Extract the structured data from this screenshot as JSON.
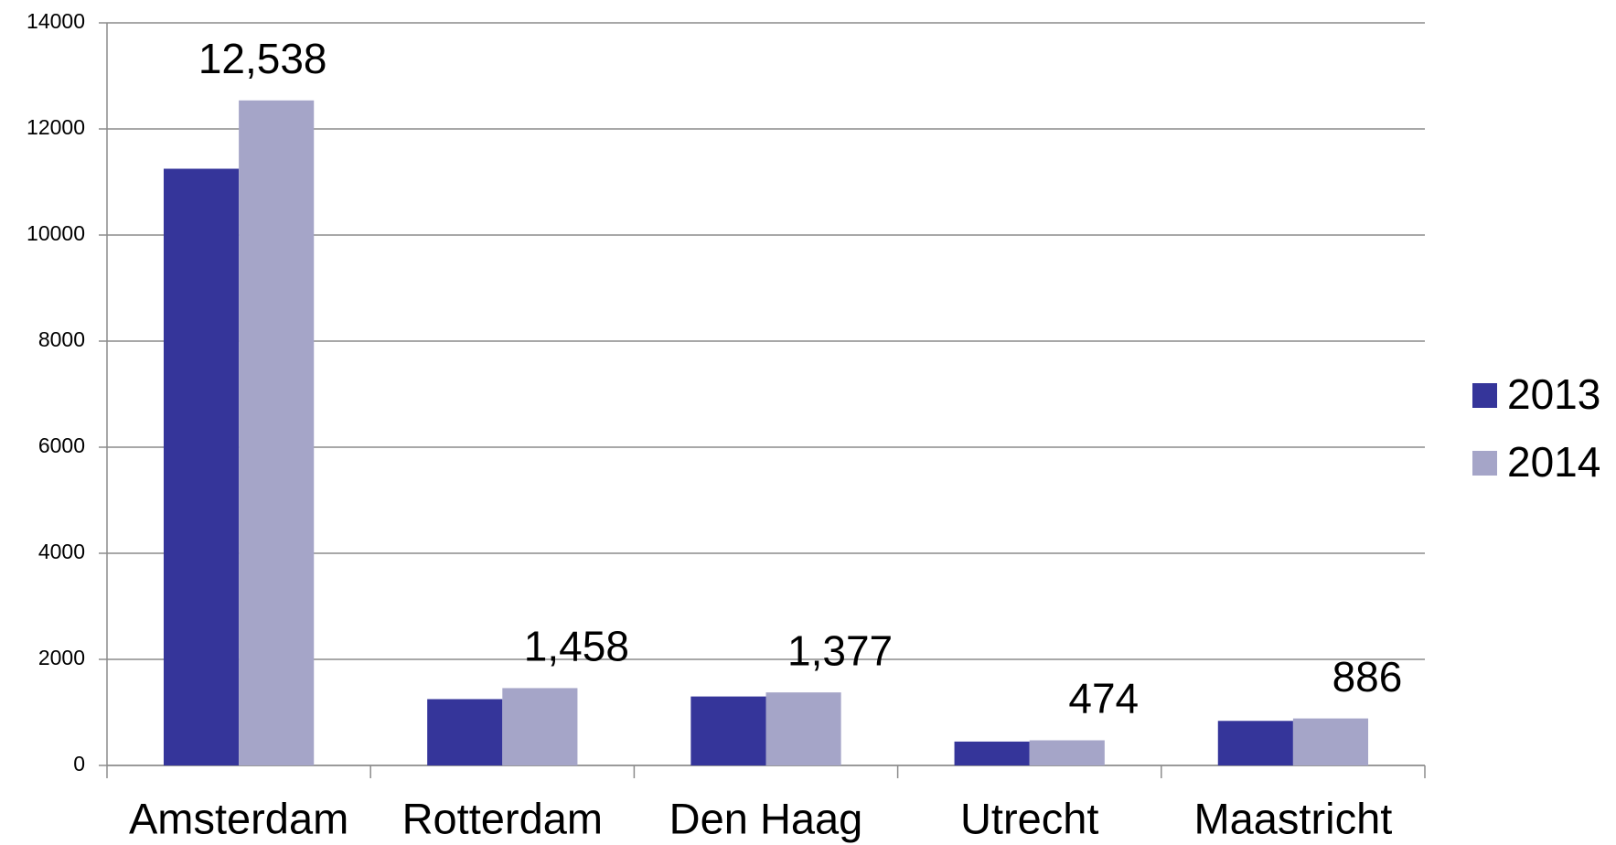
{
  "chart_data": {
    "type": "bar",
    "categories": [
      "Amsterdam",
      "Rotterdam",
      "Den Haag",
      "Utrecht",
      "Maastricht"
    ],
    "series": [
      {
        "name": "2013",
        "color": "#35359a",
        "values": [
          11250,
          1250,
          1300,
          450,
          840
        ]
      },
      {
        "name": "2014",
        "color": "#a5a5c8",
        "values": [
          12538,
          1458,
          1377,
          474,
          886
        ],
        "value_labels": [
          "12,538",
          "1,458",
          "1,377",
          "474",
          "886"
        ]
      }
    ],
    "ylim": [
      0,
      14000
    ],
    "yticks": [
      0,
      2000,
      4000,
      6000,
      8000,
      10000,
      12000,
      14000
    ],
    "grid": true,
    "legend": "right"
  }
}
